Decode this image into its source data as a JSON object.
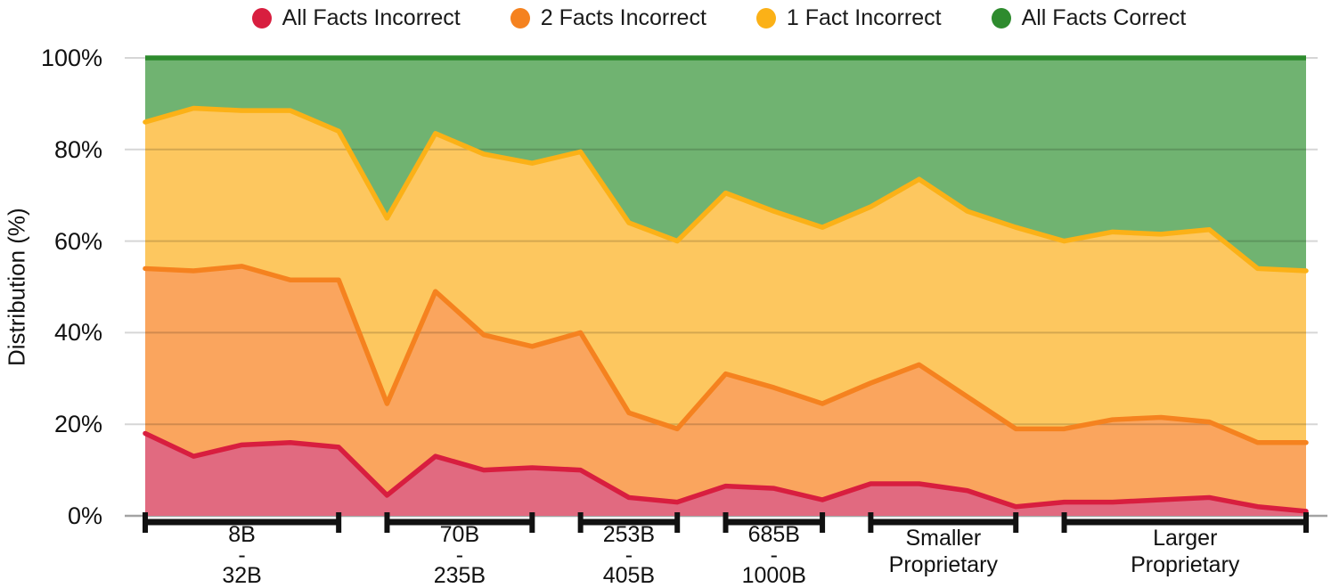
{
  "legend": {
    "items": [
      {
        "label": "All Facts Incorrect",
        "color": "#d81e3f"
      },
      {
        "label": "2 Facts Incorrect",
        "color": "#f5821f"
      },
      {
        "label": "1 Fact Incorrect",
        "color": "#fbb117"
      },
      {
        "label": "All Facts Correct",
        "color": "#2e8b2e"
      }
    ]
  },
  "y_axis": {
    "title": "Distribution (%)",
    "ticks": [
      {
        "label": "0%",
        "value": 0
      },
      {
        "label": "20%",
        "value": 20
      },
      {
        "label": "40%",
        "value": 40
      },
      {
        "label": "60%",
        "value": 60
      },
      {
        "label": "80%",
        "value": 80
      },
      {
        "label": "100%",
        "value": 100
      }
    ]
  },
  "chart_data": {
    "type": "area",
    "stacked": true,
    "ylim": [
      0,
      100
    ],
    "grid": true,
    "x_count": 25,
    "series": [
      {
        "name": "All Facts Incorrect",
        "line_color": "#d81e3f",
        "fill_color": "#e16a80",
        "values": [
          18,
          13,
          15.5,
          16,
          15,
          4.5,
          13,
          10,
          10.5,
          10,
          4,
          3,
          6.5,
          6,
          3.5,
          7,
          7,
          5.5,
          2,
          3,
          3,
          3.5,
          4,
          2,
          1
        ]
      },
      {
        "name": "2 Facts Incorrect",
        "line_color": "#f5821f",
        "fill_color": "#faa55e",
        "values": [
          36,
          40.5,
          39,
          35.5,
          36.5,
          20,
          36,
          29.5,
          26.5,
          30,
          18.5,
          16,
          24.5,
          22,
          21,
          22,
          26,
          20.5,
          17,
          16,
          18,
          18,
          16.5,
          14,
          15
        ]
      },
      {
        "name": "1 Fact Incorrect",
        "line_color": "#fbb117",
        "fill_color": "#fdc75f",
        "values": [
          32,
          35.5,
          34,
          37,
          32.5,
          40.5,
          34.5,
          39.5,
          40,
          39.5,
          41.5,
          41,
          39.5,
          38.5,
          38.5,
          38.5,
          40.5,
          40.5,
          44,
          41,
          41,
          40,
          42,
          38,
          37.5
        ]
      },
      {
        "name": "All Facts Correct",
        "line_color": "#2e8b2e",
        "fill_color": "#70b371",
        "values": [
          14,
          11,
          11.5,
          11.5,
          16,
          35,
          16.5,
          21,
          23,
          20.5,
          36,
          40,
          29.5,
          33.5,
          37,
          32.5,
          26.5,
          33.5,
          37,
          40,
          38,
          38.5,
          37.5,
          46,
          46.5
        ]
      }
    ],
    "groups": [
      {
        "label": "8B-32B",
        "label_lines": [
          "8B",
          "-",
          "32B"
        ],
        "start_index": 0,
        "end_index": 4
      },
      {
        "label": "70B-235B",
        "label_lines": [
          "70B",
          "-",
          "235B"
        ],
        "start_index": 5,
        "end_index": 8
      },
      {
        "label": "253B-405B",
        "label_lines": [
          "253B",
          "-",
          "405B"
        ],
        "start_index": 9,
        "end_index": 11
      },
      {
        "label": "685B-1000B",
        "label_lines": [
          "685B",
          "-",
          "1000B"
        ],
        "start_index": 12,
        "end_index": 14
      },
      {
        "label": "Smaller Proprietary",
        "label_lines": [
          "Smaller",
          "Proprietary"
        ],
        "start_index": 15,
        "end_index": 18
      },
      {
        "label": "Larger Proprietary",
        "label_lines": [
          "Larger",
          "Proprietary"
        ],
        "start_index": 19,
        "end_index": 24
      }
    ]
  },
  "style": {
    "grid_color": "rgba(0,0,0,0.16)",
    "axis_line_color": "#a3a3a3",
    "bracket_color": "#111111"
  }
}
